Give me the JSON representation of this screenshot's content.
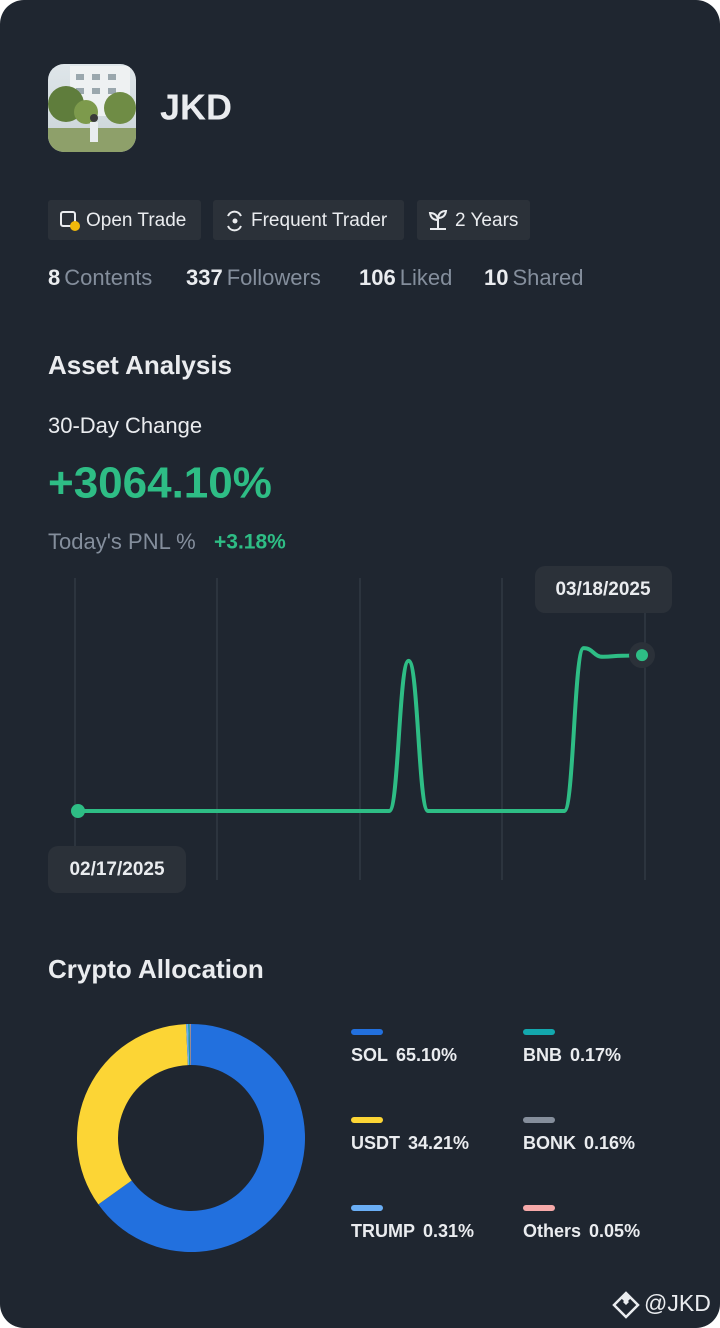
{
  "profile": {
    "name": "JKD",
    "badges": [
      "Open Trade",
      "Frequent Trader",
      "2 Years"
    ],
    "stats": [
      {
        "value": 8,
        "label": "Contents"
      },
      {
        "value": 337,
        "label": "Followers"
      },
      {
        "value": 106,
        "label": "Liked"
      },
      {
        "value": 10,
        "label": "Shared"
      }
    ]
  },
  "asset_analysis": {
    "title": "Asset Analysis",
    "change_label": "30-Day Change",
    "change": "+3064.10%",
    "pnl_label": "Today's PNL %",
    "pnl": "+3.18%"
  },
  "chart_data": [
    {
      "type": "line",
      "x": [
        "02/17/2025",
        null,
        null,
        null,
        null,
        null,
        null,
        null,
        null,
        null,
        null,
        null,
        null,
        null,
        null,
        null,
        null,
        null,
        null,
        null,
        null,
        null,
        null,
        null,
        null,
        null,
        null,
        null,
        null,
        "03/18/2025"
      ],
      "values": [
        0,
        0,
        0,
        0,
        0,
        0,
        0,
        0,
        0,
        0,
        0,
        0,
        0,
        0,
        0,
        0,
        0,
        2950,
        0,
        0,
        0,
        0,
        0,
        0,
        0,
        0,
        3200,
        3030,
        3050,
        3064
      ],
      "color": "#2ebd85",
      "ylim": [
        0,
        4500
      ]
    },
    {
      "type": "pie",
      "title": "Crypto Allocation",
      "categories": [
        "SOL",
        "USDT",
        "TRUMP",
        "BNB",
        "BONK",
        "Others"
      ],
      "values": [
        65.1,
        34.21,
        0.31,
        0.17,
        0.16,
        0.05
      ],
      "value_labels": [
        "65.10%",
        "34.21%",
        "0.31%",
        "0.17%",
        "0.16%",
        "0.05%"
      ],
      "colors": [
        "#2270de",
        "#fcd535",
        "#6aaef5",
        "#13a8ae",
        "#858e9b",
        "#f6a9a9"
      ]
    }
  ],
  "footer": {
    "handle": "@JKD"
  }
}
